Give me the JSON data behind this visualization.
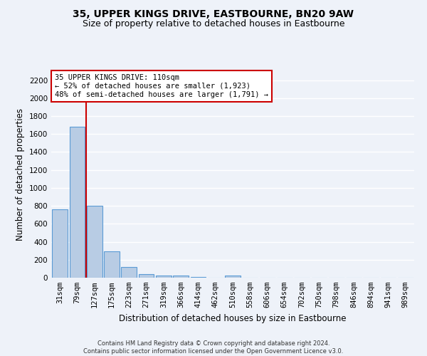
{
  "title": "35, UPPER KINGS DRIVE, EASTBOURNE, BN20 9AW",
  "subtitle": "Size of property relative to detached houses in Eastbourne",
  "xlabel": "Distribution of detached houses by size in Eastbourne",
  "ylabel": "Number of detached properties",
  "categories": [
    "31sqm",
    "79sqm",
    "127sqm",
    "175sqm",
    "223sqm",
    "271sqm",
    "319sqm",
    "366sqm",
    "414sqm",
    "462sqm",
    "510sqm",
    "558sqm",
    "606sqm",
    "654sqm",
    "702sqm",
    "750sqm",
    "798sqm",
    "846sqm",
    "894sqm",
    "941sqm",
    "989sqm"
  ],
  "values": [
    760,
    1680,
    800,
    295,
    120,
    38,
    25,
    20,
    5,
    0,
    20,
    0,
    0,
    0,
    0,
    0,
    0,
    0,
    0,
    0,
    0
  ],
  "bar_color": "#b8cce4",
  "bar_edge_color": "#5b9bd5",
  "ylim": [
    0,
    2300
  ],
  "yticks": [
    0,
    200,
    400,
    600,
    800,
    1000,
    1200,
    1400,
    1600,
    1800,
    2000,
    2200
  ],
  "property_line_x": 1.5,
  "annotation_text": "35 UPPER KINGS DRIVE: 110sqm\n← 52% of detached houses are smaller (1,923)\n48% of semi-detached houses are larger (1,791) →",
  "footer_line1": "Contains HM Land Registry data © Crown copyright and database right 2024.",
  "footer_line2": "Contains public sector information licensed under the Open Government Licence v3.0.",
  "background_color": "#eef2f9",
  "grid_color": "#ffffff",
  "annotation_box_color": "#ffffff",
  "annotation_box_edge": "#cc0000",
  "title_fontsize": 10,
  "subtitle_fontsize": 9,
  "axis_label_fontsize": 8.5,
  "tick_fontsize": 7.5,
  "footer_fontsize": 6,
  "annotation_fontsize": 7.5
}
